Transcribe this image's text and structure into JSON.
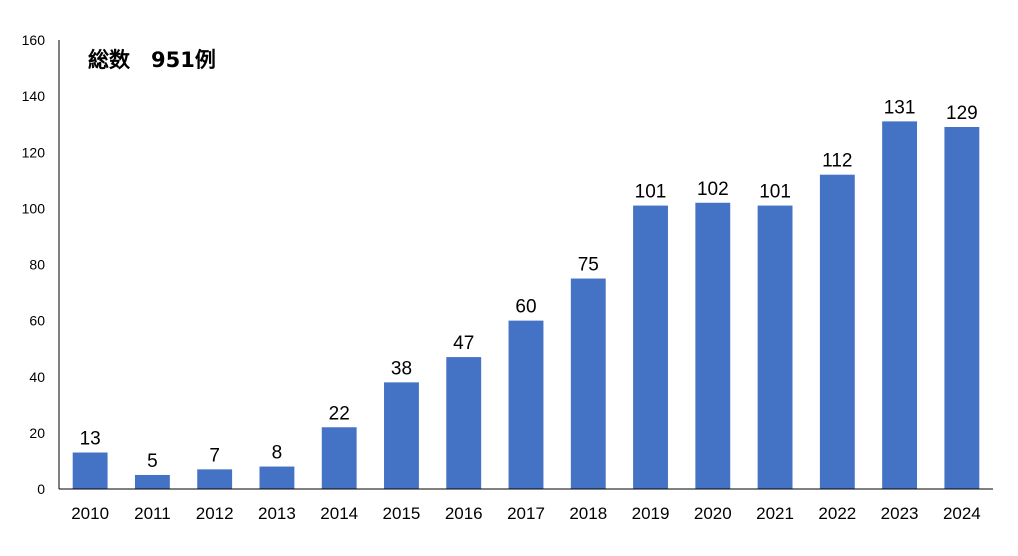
{
  "chart_data": {
    "type": "bar",
    "title": "",
    "xlabel": "",
    "ylabel": "",
    "annotation": "総数　951例",
    "categories": [
      "2010",
      "2011",
      "2012",
      "2013",
      "2014",
      "2015",
      "2016",
      "2017",
      "2018",
      "2019",
      "2020",
      "2021",
      "2022",
      "2023",
      "2024"
    ],
    "values": [
      13,
      5,
      7,
      8,
      22,
      38,
      47,
      60,
      75,
      101,
      102,
      101,
      112,
      131,
      129
    ],
    "ylim": [
      0,
      160
    ],
    "yticks": [
      "0",
      "20",
      "40",
      "60",
      "80",
      "100",
      "120",
      "140",
      "160"
    ],
    "data_labels": [
      "13",
      "5",
      "7",
      "8",
      "22",
      "38",
      "47",
      "60",
      "75",
      "101",
      "102",
      "101",
      "112",
      "131",
      "129"
    ],
    "grid": false,
    "legend": "none",
    "bar_color": "#4472c4",
    "axis_color": "#000000"
  }
}
